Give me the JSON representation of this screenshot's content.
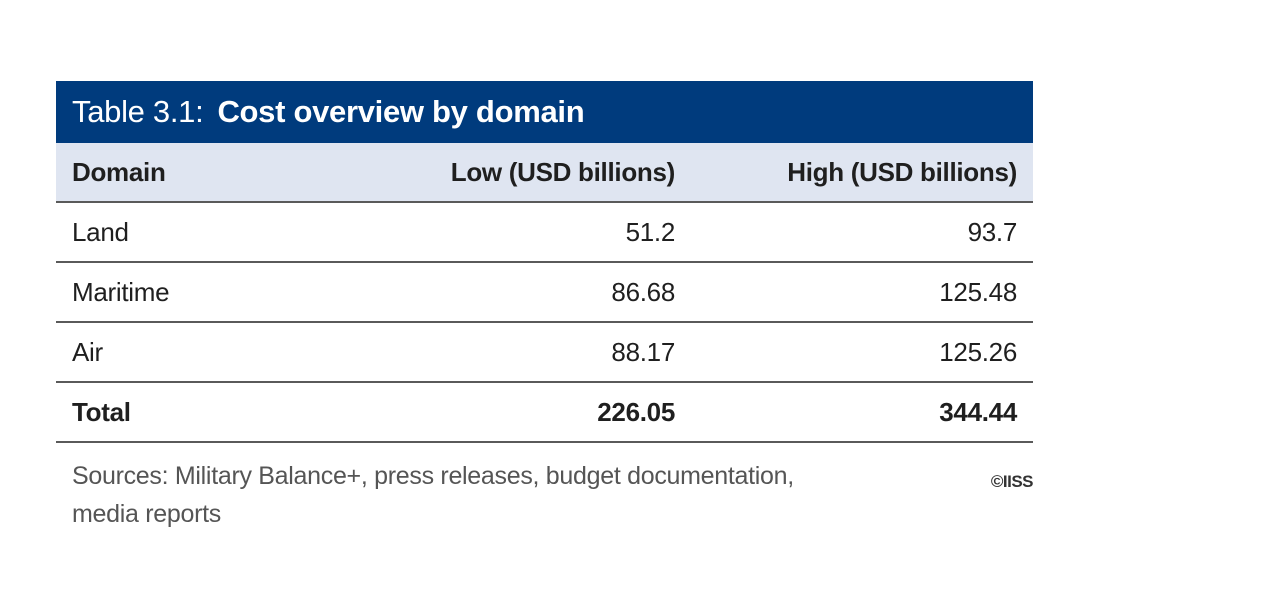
{
  "table": {
    "title_prefix": "Table 3.1:",
    "title_main": "Cost overview by domain",
    "headers": [
      "Domain",
      "Low (USD billions)",
      "High (USD billions)"
    ],
    "rows": [
      [
        "Land",
        "51.2",
        "93.7"
      ],
      [
        "Maritime",
        "86.68",
        "125.48"
      ],
      [
        "Air",
        "88.17",
        "125.26"
      ]
    ],
    "total": [
      "Total",
      "226.05",
      "344.44"
    ]
  },
  "footer": {
    "sources": "Sources: Military Balance+, press releases, budget documentation, media reports",
    "copyright": "©IISS"
  },
  "colors": {
    "title_bar": "#003b7d",
    "header_row": "#dfe5f1"
  }
}
